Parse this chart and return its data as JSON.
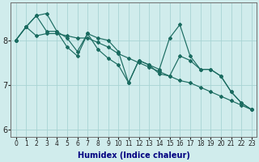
{
  "xlabel": "Humidex (Indice chaleur)",
  "background_color": "#d0ecec",
  "grid_color": "#a8d4d4",
  "line_color": "#1a6b60",
  "xlim": [
    -0.5,
    23.5
  ],
  "ylim": [
    5.85,
    8.85
  ],
  "yticks": [
    6,
    7,
    8
  ],
  "xticks": [
    0,
    1,
    2,
    3,
    4,
    5,
    6,
    7,
    8,
    9,
    10,
    11,
    12,
    13,
    14,
    15,
    16,
    17,
    18,
    19,
    20,
    21,
    22,
    23
  ],
  "line1": [
    8.0,
    8.3,
    8.55,
    8.2,
    8.2,
    7.85,
    7.65,
    8.15,
    7.8,
    7.6,
    7.45,
    7.05,
    7.55,
    7.45,
    7.35,
    8.05,
    8.35,
    7.65,
    7.35,
    7.35,
    7.2,
    6.85,
    6.6,
    6.45
  ],
  "line2": [
    8.0,
    8.3,
    8.1,
    8.15,
    8.15,
    8.1,
    8.05,
    8.05,
    7.95,
    7.85,
    7.7,
    7.6,
    7.5,
    7.4,
    7.3,
    7.2,
    7.1,
    7.05,
    6.95,
    6.85,
    6.75,
    6.65,
    6.55,
    6.45
  ],
  "line3": [
    8.0,
    8.3,
    8.55,
    8.6,
    8.2,
    8.05,
    7.75,
    8.15,
    8.05,
    8.0,
    7.75,
    7.05,
    7.55,
    7.45,
    7.25,
    7.2,
    7.65,
    7.55,
    7.35,
    7.35,
    7.2,
    6.85,
    6.6,
    6.45
  ],
  "xlabel_color": "#000080",
  "xlabel_fontsize": 7,
  "tick_fontsize_x": 5.5,
  "tick_fontsize_y": 7
}
